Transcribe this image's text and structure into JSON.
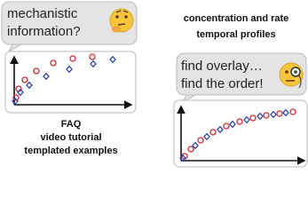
{
  "left_bubble": {
    "lines": [
      "mechanistic",
      "information?"
    ]
  },
  "right_heading": {
    "lines": [
      "concentration and rate",
      "temporal profiles"
    ]
  },
  "right_bubble": {
    "lines": [
      "find overlay…",
      "find the order!"
    ]
  },
  "left_caption": {
    "lines": [
      "FAQ",
      "video tutorial",
      "templated examples"
    ]
  }
}
